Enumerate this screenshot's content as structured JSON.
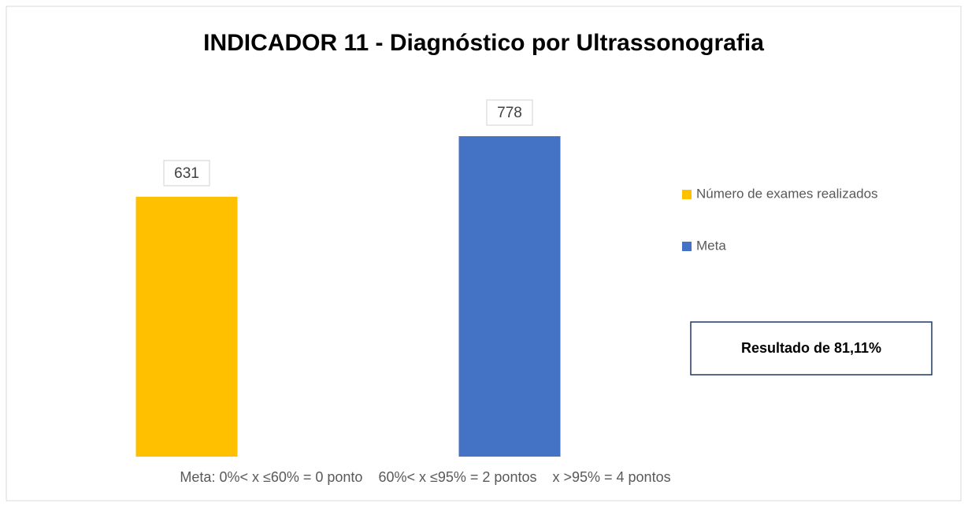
{
  "chart_data": {
    "type": "bar",
    "title": "INDICADOR 11 - Diagnóstico por Ultrassonografia",
    "series": [
      {
        "name": "Número de exames realizados",
        "color": "#ffc000",
        "values": [
          631
        ]
      },
      {
        "name": "Meta",
        "color": "#4472c4",
        "values": [
          778
        ]
      }
    ],
    "legend": "right",
    "annotations": [
      "Resultado de 81,11%",
      "Meta: 0%< x ≤60% = 0 ponto    60%< x ≤95% = 2 pontos    x >95% = 4 pontos"
    ]
  }
}
